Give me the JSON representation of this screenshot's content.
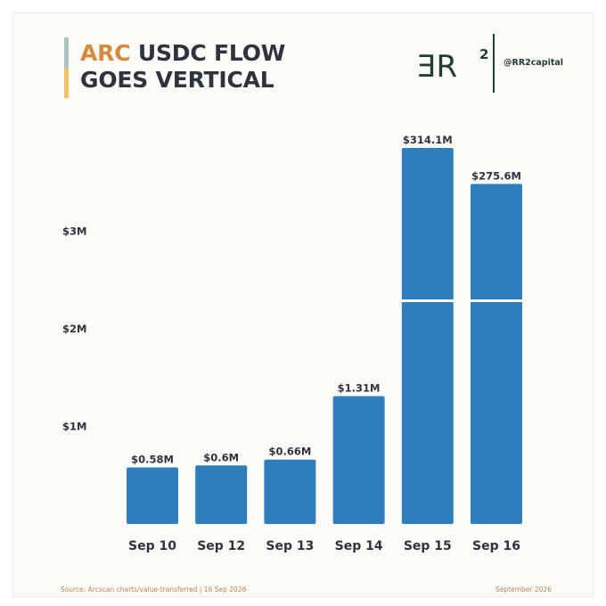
{
  "header": {
    "title_highlight": "ARC",
    "title_line1_rest": " USDC FLOW",
    "title_line2": "GOES VERTICAL"
  },
  "brand": {
    "logo_text": "ƎR",
    "logo_sup": "2",
    "handle": "@RR2capital",
    "color": "#1f3f33"
  },
  "footer": {
    "source": "Source: Arcscan charts/value-transferred | 16 Sep 2026",
    "date": "September 2026"
  },
  "colors": {
    "bar": "#2f7ebb",
    "title_highlight": "#d58a3d",
    "text": "#2d3340",
    "accent_teal": "#a9c6c3",
    "accent_gold": "#f3c16d"
  },
  "chart_data": {
    "type": "bar",
    "axis_break": true,
    "categories": [
      "Sep 10",
      "Sep 12",
      "Sep 13",
      "Sep 14",
      "Sep 15",
      "Sep 16"
    ],
    "values": [
      0.58,
      0.6,
      0.66,
      1.31,
      314.1,
      275.6
    ],
    "value_labels": [
      "$0.58M",
      "$0.6M",
      "$0.66M",
      "$1.31M",
      "$314.1M",
      "$275.6M"
    ],
    "yticks": [
      1,
      2,
      3
    ],
    "ytick_labels": [
      "$1M",
      "$2M",
      "$3M"
    ],
    "ylim": [
      0,
      3.8
    ],
    "grid": false
  }
}
